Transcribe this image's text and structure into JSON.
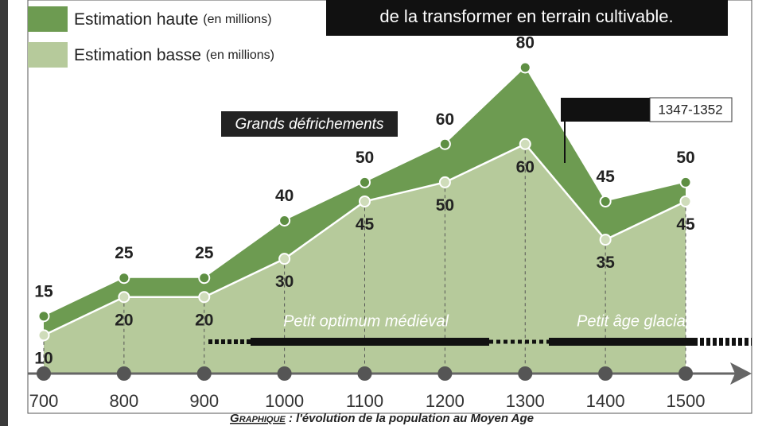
{
  "banner": "de la transformer en terrain cultivable.",
  "chart_data": {
    "type": "area",
    "x": [
      700,
      800,
      900,
      1000,
      1100,
      1200,
      1300,
      1400,
      1500
    ],
    "xlim": [
      700,
      1500
    ],
    "xticks": [
      700,
      800,
      900,
      1000,
      1100,
      1200,
      1300,
      1400,
      1500
    ],
    "ylim": [
      0,
      80
    ],
    "series": [
      {
        "name": "Estimation haute",
        "unit": "(en millions)",
        "color": "#6d9b51",
        "values": [
          15,
          25,
          25,
          40,
          50,
          60,
          80,
          45,
          50
        ]
      },
      {
        "name": "Estimation basse",
        "unit": "(en millions)",
        "color": "#b6ca9b",
        "values": [
          10,
          20,
          20,
          30,
          45,
          50,
          60,
          35,
          45
        ]
      }
    ],
    "annotations": [
      "Grands défrichements",
      "1347-1352",
      "Petit optimum médiéval",
      "Petit âge glacia"
    ]
  },
  "caption": {
    "label": "Graphique",
    "text": ": l'évolution de la population au Moyen Age"
  }
}
